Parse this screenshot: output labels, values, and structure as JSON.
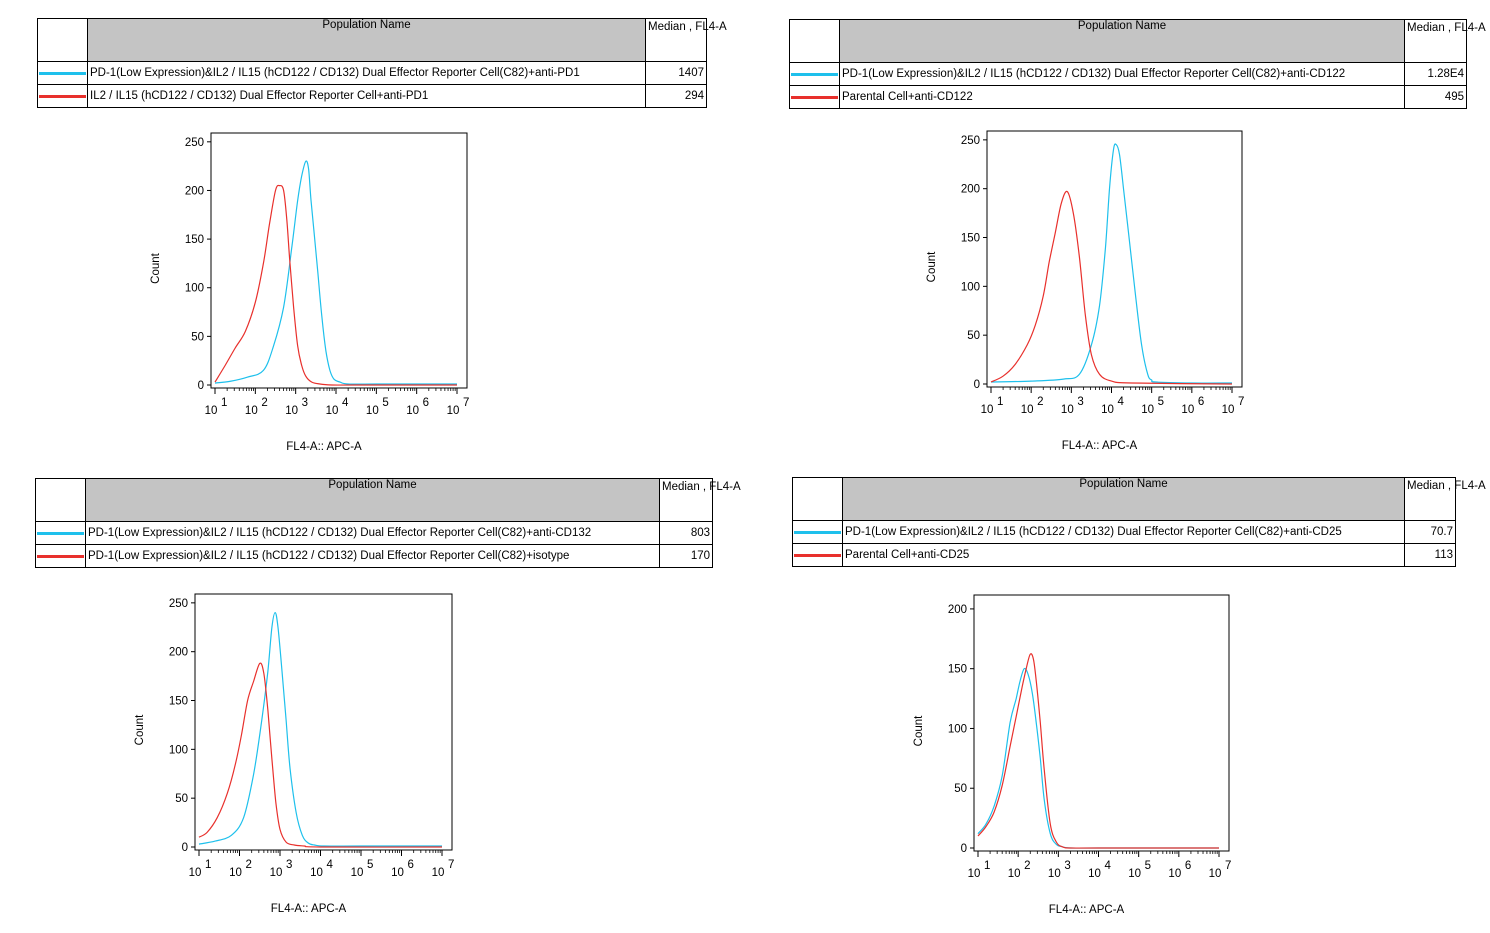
{
  "panels": [
    {
      "table": {
        "header_name": "Population Name",
        "header_median": "Median , FL4-A",
        "rows": [
          {
            "name": "PD-1(Low Expression)&IL2 / IL15 (hCD122 / CD132) Dual Effector Reporter Cell(C82)+anti-PD1",
            "median": "1407",
            "color": "#1ec0ec"
          },
          {
            "name": "IL2 / IL15 (hCD122 / CD132) Dual Effector Reporter Cell+anti-PD1",
            "median": "294",
            "color": "#e8302c"
          }
        ]
      },
      "chart_data": {
        "type": "line",
        "xlabel": "FL4-A:: APC-A",
        "ylabel": "Count",
        "xscale": "log",
        "xlim": [
          1,
          7
        ],
        "ylim": [
          0,
          250
        ],
        "yticks": [
          0,
          50,
          100,
          150,
          200,
          250
        ],
        "xticks": [
          1,
          2,
          3,
          4,
          5,
          6,
          7
        ],
        "xtick_labels": [
          "10^1",
          "10^2",
          "10^3",
          "10^4",
          "10^5",
          "10^6",
          "10^7"
        ],
        "grid": false,
        "series": [
          {
            "name": "PD-1(Low Expression)&IL2 / IL15 (hCD122 / CD132) Dual Effector Reporter Cell(C82)+anti-PD1",
            "color": "#1ec0ec",
            "x": [
              1.0,
              1.4,
              1.8,
              2.2,
              2.45,
              2.7,
              2.9,
              3.05,
              3.15,
              3.25,
              3.32,
              3.38,
              3.45,
              3.55,
              3.65,
              3.75,
              3.85,
              3.95,
              4.1,
              4.3,
              5.0,
              6.0,
              7.0
            ],
            "y": [
              2,
              4,
              8,
              15,
              40,
              80,
              140,
              190,
              215,
              230,
              222,
              190,
              160,
              115,
              70,
              35,
              15,
              6,
              3,
              1,
              1,
              1,
              1
            ]
          },
          {
            "name": "IL2 / IL15 (hCD122 / CD132) Dual Effector Reporter Cell+anti-PD1",
            "color": "#e8302c",
            "x": [
              1.0,
              1.25,
              1.5,
              1.75,
              2.0,
              2.2,
              2.35,
              2.5,
              2.6,
              2.7,
              2.78,
              2.85,
              2.95,
              3.05,
              3.15,
              3.25,
              3.4,
              3.6,
              3.9,
              4.5,
              7.0
            ],
            "y": [
              3,
              20,
              38,
              55,
              85,
              125,
              165,
              200,
              205,
              200,
              170,
              130,
              80,
              40,
              20,
              9,
              3,
              1,
              0,
              0,
              0
            ]
          }
        ]
      }
    },
    {
      "table": {
        "header_name": "Population Name",
        "header_median": "Median , FL4-A",
        "rows": [
          {
            "name": "PD-1(Low Expression)&IL2 / IL15 (hCD122 / CD132) Dual Effector Reporter Cell(C82)+anti-CD122",
            "median": "1.28E4",
            "color": "#1ec0ec"
          },
          {
            "name": "Parental Cell+anti-CD122",
            "median": "495",
            "color": "#e8302c"
          }
        ]
      },
      "chart_data": {
        "type": "line",
        "xlabel": "FL4-A:: APC-A",
        "ylabel": "Count",
        "xscale": "log",
        "xlim": [
          1,
          7
        ],
        "ylim": [
          0,
          250
        ],
        "yticks": [
          0,
          50,
          100,
          150,
          200,
          250
        ],
        "xticks": [
          1,
          2,
          3,
          4,
          5,
          6,
          7
        ],
        "xtick_labels": [
          "10^1",
          "10^2",
          "10^3",
          "10^4",
          "10^5",
          "10^6",
          "10^7"
        ],
        "grid": false,
        "series": [
          {
            "name": "PD-1(Low Expression)&IL2 / IL15 (hCD122 / CD132) Dual Effector Reporter Cell(C82)+anti-CD122",
            "color": "#1ec0ec",
            "x": [
              1.0,
              2.0,
              2.8,
              3.2,
              3.5,
              3.7,
              3.85,
              3.95,
              4.05,
              4.12,
              4.2,
              4.3,
              4.45,
              4.6,
              4.75,
              4.9,
              5.0,
              5.1,
              6.0,
              7.0
            ],
            "y": [
              2,
              3,
              5,
              10,
              40,
              80,
              140,
              200,
              240,
              245,
              235,
              200,
              145,
              90,
              40,
              10,
              4,
              2,
              1,
              1
            ]
          },
          {
            "name": "Parental Cell+anti-CD122",
            "color": "#e8302c",
            "x": [
              1.0,
              1.3,
              1.6,
              1.9,
              2.1,
              2.3,
              2.45,
              2.6,
              2.75,
              2.9,
              3.05,
              3.2,
              3.35,
              3.5,
              3.7,
              4.0,
              4.5,
              7.0
            ],
            "y": [
              2,
              8,
              20,
              40,
              60,
              90,
              125,
              155,
              185,
              197,
              175,
              130,
              70,
              30,
              10,
              3,
              1,
              0
            ]
          }
        ]
      }
    },
    {
      "table": {
        "header_name": "Population Name",
        "header_median": "Median , FL4-A",
        "rows": [
          {
            "name": "PD-1(Low Expression)&IL2 / IL15 (hCD122 / CD132) Dual Effector Reporter Cell(C82)+anti-CD132",
            "median": "803",
            "color": "#1ec0ec"
          },
          {
            "name": "PD-1(Low Expression)&IL2 / IL15 (hCD122 / CD132) Dual Effector Reporter Cell(C82)+isotype",
            "median": "170",
            "color": "#e8302c"
          }
        ]
      },
      "chart_data": {
        "type": "line",
        "xlabel": "FL4-A:: APC-A",
        "ylabel": "Count",
        "xscale": "log",
        "xlim": [
          1,
          7
        ],
        "ylim": [
          0,
          250
        ],
        "yticks": [
          0,
          50,
          100,
          150,
          200,
          250
        ],
        "xticks": [
          1,
          2,
          3,
          4,
          5,
          6,
          7
        ],
        "xtick_labels": [
          "10^1",
          "10^2",
          "10^3",
          "10^4",
          "10^5",
          "10^6",
          "10^7"
        ],
        "grid": false,
        "series": [
          {
            "name": "PD-1(Low Expression)&IL2 / IL15 (hCD122 / CD132) Dual Effector Reporter Cell(C82)+anti-CD132",
            "color": "#1ec0ec",
            "x": [
              1.0,
              1.4,
              1.8,
              2.1,
              2.35,
              2.55,
              2.7,
              2.8,
              2.88,
              2.95,
              3.05,
              3.15,
              3.25,
              3.4,
              3.55,
              3.7,
              3.85,
              4.1,
              5.0,
              7.0
            ],
            "y": [
              3,
              6,
              12,
              30,
              75,
              130,
              180,
              225,
              240,
              225,
              180,
              130,
              80,
              35,
              12,
              4,
              2,
              1,
              1,
              1
            ]
          },
          {
            "name": "PD-1(Low Expression)&IL2 / IL15 (hCD122 / CD132) Dual Effector Reporter Cell(C82)+isotype",
            "color": "#e8302c",
            "x": [
              1.0,
              1.2,
              1.45,
              1.7,
              1.9,
              2.05,
              2.2,
              2.35,
              2.5,
              2.6,
              2.7,
              2.8,
              2.9,
              3.0,
              3.15,
              3.35,
              3.6,
              4.0,
              7.0
            ],
            "y": [
              10,
              15,
              30,
              55,
              85,
              115,
              150,
              170,
              188,
              178,
              140,
              90,
              45,
              18,
              5,
              2,
              1,
              0,
              0
            ]
          }
        ]
      }
    },
    {
      "table": {
        "header_name": "Population Name",
        "header_median": "Median , FL4-A",
        "rows": [
          {
            "name": "PD-1(Low Expression)&IL2 / IL15 (hCD122 / CD132) Dual Effector Reporter Cell(C82)+anti-CD25",
            "median": "70.7",
            "color": "#1ec0ec"
          },
          {
            "name": "Parental Cell+anti-CD25",
            "median": "113",
            "color": "#e8302c"
          }
        ]
      },
      "chart_data": {
        "type": "line",
        "xlabel": "FL4-A:: APC-A",
        "ylabel": "Count",
        "xscale": "log",
        "xlim": [
          1,
          7
        ],
        "ylim": [
          0,
          200
        ],
        "yticks": [
          0,
          50,
          100,
          150,
          200
        ],
        "xticks": [
          1,
          2,
          3,
          4,
          5,
          6,
          7
        ],
        "xtick_labels": [
          "10^1",
          "10^2",
          "10^3",
          "10^4",
          "10^5",
          "10^6",
          "10^7"
        ],
        "grid": false,
        "series": [
          {
            "name": "PD-1(Low Expression)&IL2 / IL15 (hCD122 / CD132) Dual Effector Reporter Cell(C82)+anti-CD25",
            "color": "#1ec0ec",
            "x": [
              1.0,
              1.2,
              1.4,
              1.6,
              1.8,
              1.95,
              2.05,
              2.15,
              2.25,
              2.35,
              2.45,
              2.55,
              2.65,
              2.8,
              2.95,
              3.1,
              3.3,
              4.0,
              7.0
            ],
            "y": [
              12,
              20,
              35,
              60,
              105,
              125,
              140,
              150,
              145,
              130,
              105,
              75,
              40,
              12,
              3,
              1,
              0,
              0,
              0
            ]
          },
          {
            "name": "Parental Cell+anti-CD25",
            "color": "#e8302c",
            "x": [
              1.0,
              1.2,
              1.4,
              1.6,
              1.8,
              1.95,
              2.1,
              2.2,
              2.3,
              2.38,
              2.45,
              2.55,
              2.65,
              2.8,
              2.95,
              3.1,
              3.3,
              4.0,
              7.0
            ],
            "y": [
              10,
              18,
              30,
              52,
              85,
              110,
              135,
              150,
              162,
              158,
              140,
              105,
              65,
              20,
              5,
              1,
              0,
              0,
              0
            ]
          }
        ]
      }
    }
  ]
}
